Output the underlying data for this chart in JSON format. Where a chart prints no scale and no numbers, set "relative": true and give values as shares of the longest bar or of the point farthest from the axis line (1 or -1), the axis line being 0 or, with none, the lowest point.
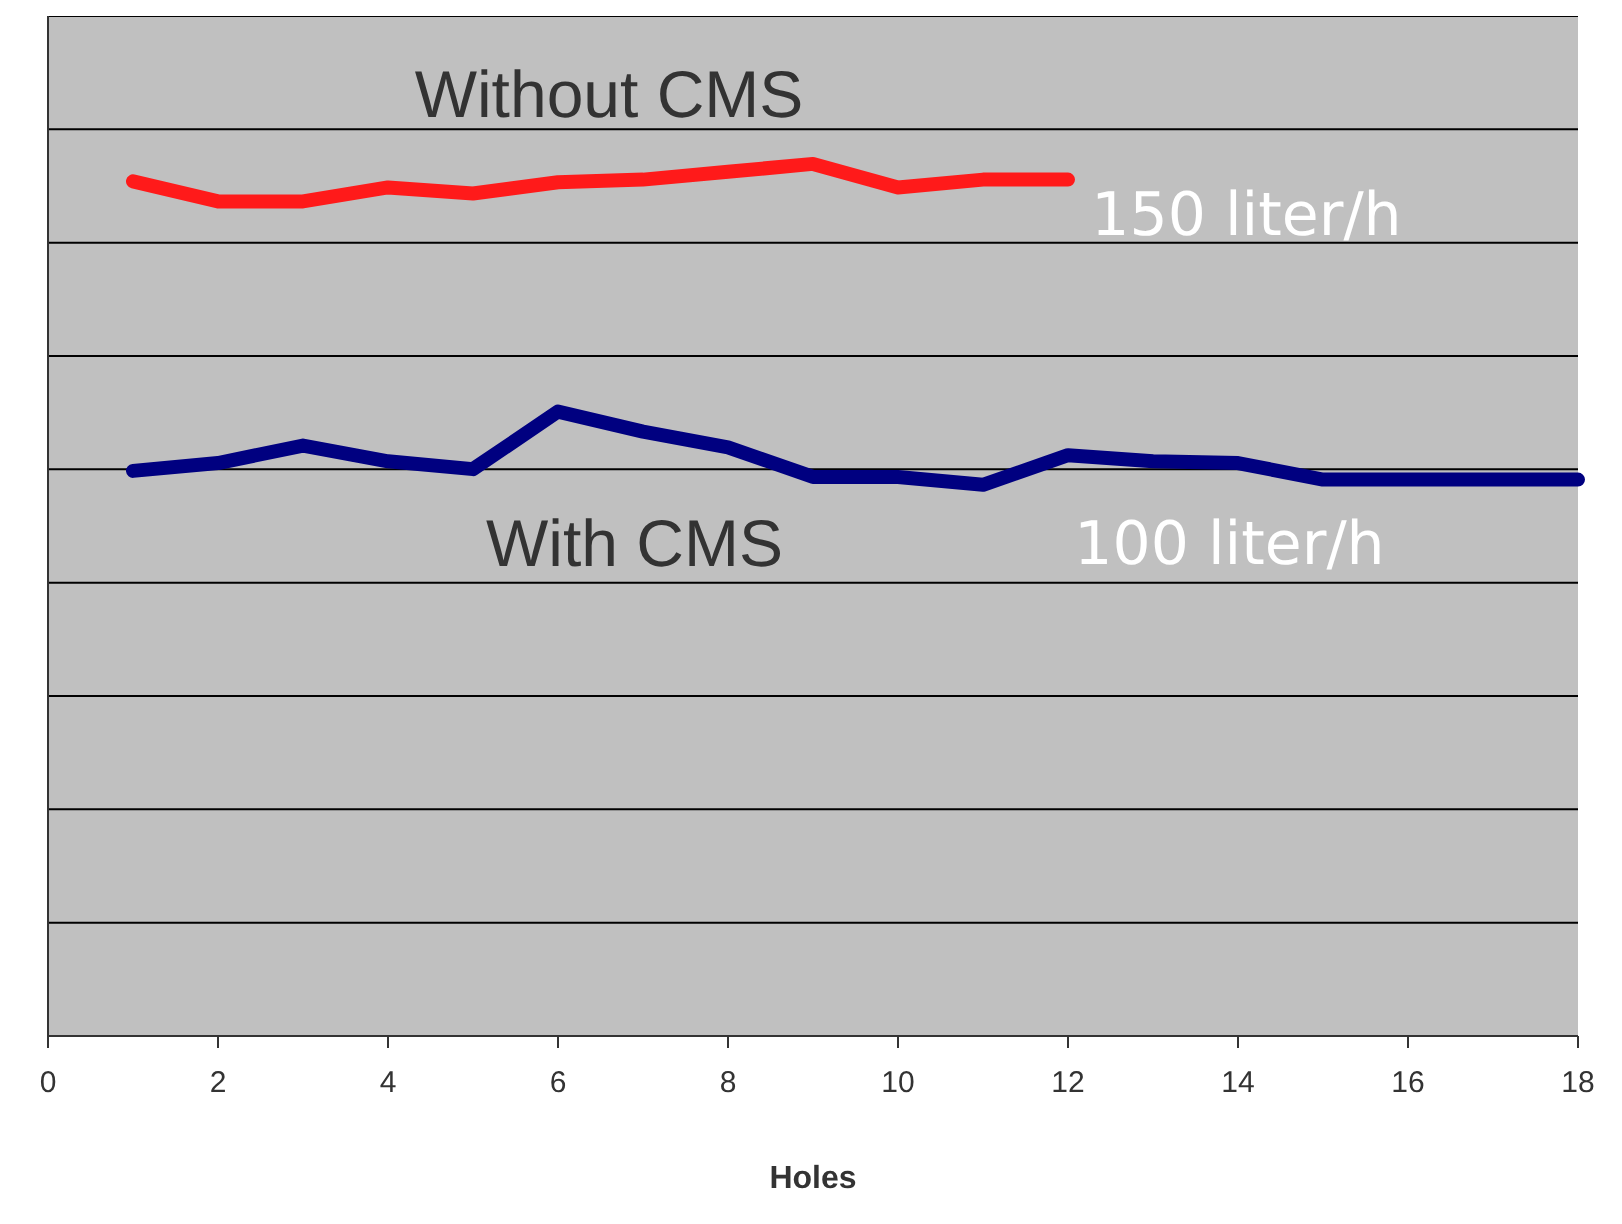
{
  "chart_data": {
    "type": "line",
    "relative": true,
    "xlabel": "Holes",
    "x": [
      1,
      2,
      3,
      4,
      5,
      6,
      7,
      8,
      9,
      10,
      11,
      12,
      13,
      14,
      15,
      16,
      17,
      18
    ],
    "xlim": [
      0,
      18
    ],
    "xticks": [
      0,
      2,
      4,
      6,
      8,
      10,
      12,
      14,
      16,
      18
    ],
    "grid": "y",
    "marker": "none",
    "line_style": "solid",
    "series": [
      {
        "color": "#ff1a1a",
        "x": [
          1,
          2,
          3,
          4,
          5,
          6,
          7,
          8,
          9,
          10,
          11,
          12
        ],
        "values": [
          0.98,
          0.957,
          0.957,
          0.973,
          0.966,
          0.979,
          0.982,
          0.991,
          1,
          0.973,
          0.982,
          0.982
        ]
      },
      {
        "color": "#000080",
        "values": [
          0.648,
          0.657,
          0.677,
          0.659,
          0.65,
          0.716,
          0.693,
          0.675,
          0.641,
          0.641,
          0.632,
          0.666,
          0.659,
          0.657,
          0.638,
          0.638,
          0.638,
          0.638
        ]
      }
    ],
    "annotations": [
      "Without CMS",
      "With CMS",
      "150 liter/h",
      "100 liter/h"
    ]
  }
}
